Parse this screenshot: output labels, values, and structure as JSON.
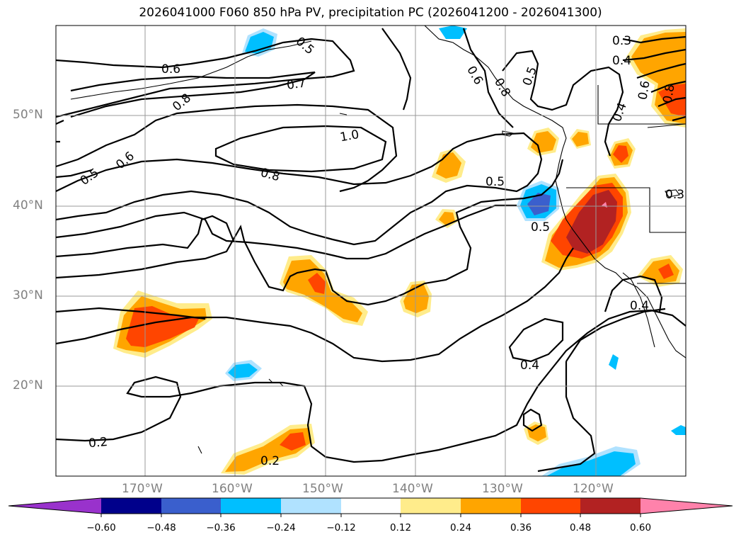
{
  "title": "2026041000 F060 850 hPa PV, precipitation PC (2026041200 - 2026041300)",
  "lat_labels": [
    "50°N",
    "40°N",
    "30°N",
    "20°N"
  ],
  "lon_labels": [
    "170°W",
    "160°W",
    "150°W",
    "140°W",
    "130°W",
    "120°W"
  ],
  "contour_labels": [
    "0.6",
    "0.7",
    "0.8",
    "1.0",
    "0.8",
    "0.6",
    "0.5",
    "0.5",
    "0.5",
    "0.5",
    "0.4",
    "0.3",
    "0.4",
    "0.4",
    "0.4",
    "0.2",
    "0.2",
    "0.3",
    "0.5",
    "0.6",
    "0.8",
    "0.6",
    "0.8"
  ],
  "colorbar": {
    "ticks": [
      "−0.60",
      "−0.48",
      "−0.36",
      "−0.24",
      "−0.12",
      "0.12",
      "0.24",
      "0.36",
      "0.48",
      "0.60"
    ],
    "colors": [
      "#9932cc",
      "#00008b",
      "#3a5fcd",
      "#00bfff",
      "#b0e2ff",
      "#ffffff",
      "#ffec8b",
      "#ffa500",
      "#ff4500",
      "#b22222",
      "#ff82ab"
    ]
  },
  "shading_colors": {
    "pos1": "#ffec8b",
    "pos2": "#ffa500",
    "pos3": "#ff4500",
    "pos4": "#b22222",
    "pos5": "#ff82ab",
    "neg1": "#b0e2ff",
    "neg2": "#00bfff",
    "neg3": "#3a5fcd"
  }
}
